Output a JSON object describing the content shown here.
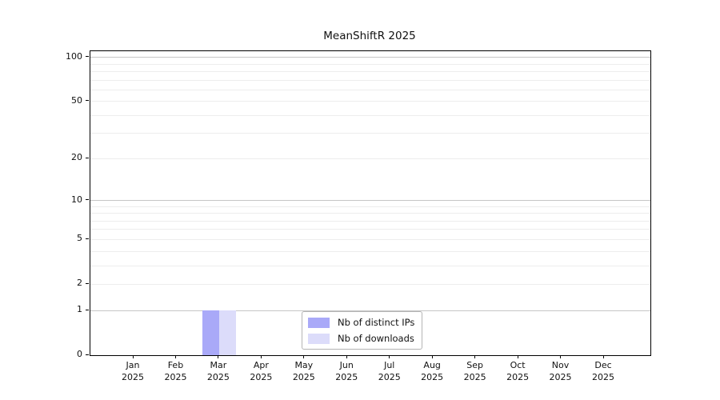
{
  "chart_data": {
    "type": "bar",
    "title": "MeanShiftR 2025",
    "x": {
      "months": [
        "Jan",
        "Feb",
        "Mar",
        "Apr",
        "May",
        "Jun",
        "Jul",
        "Aug",
        "Sep",
        "Oct",
        "Nov",
        "Dec"
      ],
      "year": "2025"
    },
    "series": [
      {
        "name": "Nb of distinct IPs",
        "color": "#a9a9f8",
        "values": [
          0,
          0,
          1,
          0,
          0,
          0,
          0,
          0,
          0,
          0,
          0,
          0
        ]
      },
      {
        "name": "Nb of downloads",
        "color": "#dcdcfa",
        "values": [
          0,
          0,
          1,
          0,
          0,
          0,
          0,
          0,
          0,
          0,
          0,
          0
        ]
      }
    ],
    "yscale": "log1p",
    "ylim": [
      0,
      110
    ],
    "ytick_values": [
      0,
      1,
      2,
      5,
      10,
      20,
      50,
      100
    ],
    "gridlines": {
      "major": [
        1,
        10,
        100
      ],
      "minor": [
        2,
        3,
        4,
        5,
        6,
        7,
        8,
        9,
        20,
        30,
        40,
        50,
        60,
        70,
        80,
        90
      ]
    },
    "legend": {
      "position": "lower center"
    },
    "colors": {
      "grid_major": "#c6c6c6",
      "grid_minor": "#ededed",
      "spine": "#000000",
      "background": "#ffffff"
    }
  }
}
